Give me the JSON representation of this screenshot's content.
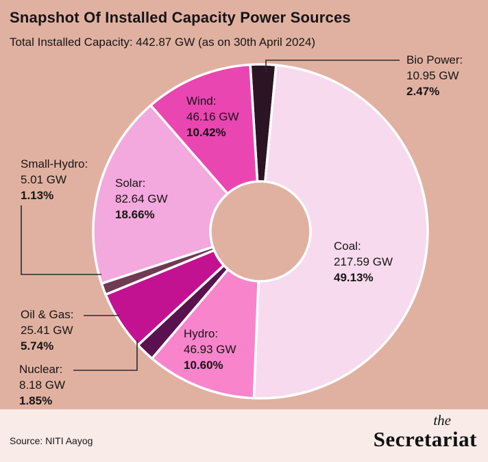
{
  "header": {
    "title": "Snapshot Of Installed Capacity Power Sources",
    "subtitle": "Total Installed Capacity: 442.87 GW (as on 30th April 2024)"
  },
  "footer": {
    "source": "Source: NITI Aayog",
    "logo_top": "the",
    "logo_main": "Secretariat"
  },
  "colors": {
    "background": "#e0b1a1",
    "footer_background": "#f9ebe8",
    "gap_stroke": "#ffffff",
    "connector": "#2a2a2a",
    "text": "#171414"
  },
  "chart_data": {
    "type": "pie",
    "donut": true,
    "title": "Snapshot Of Installed Capacity Power Sources",
    "subtitle": "Total Installed Capacity: 442.87 GW (as on 30th April 2024)",
    "total_label": "442.87 GW",
    "as_on": "30th April 2024",
    "direction": "clockwise",
    "start_angle_deg": -3.5,
    "legend_position": "around-slices",
    "series": [
      {
        "id": "bio",
        "label": "Bio Power:",
        "gw": "10.95 GW",
        "value_gw": 10.95,
        "pct": 2.47,
        "pct_label": "2.47%",
        "color": "#2b1424"
      },
      {
        "id": "coal",
        "label": "Coal:",
        "gw": "217.59 GW",
        "value_gw": 217.59,
        "pct": 49.13,
        "pct_label": "49.13%",
        "color": "#f7daee"
      },
      {
        "id": "hydro",
        "label": "Hydro:",
        "gw": "46.93 GW",
        "value_gw": 46.93,
        "pct": 10.6,
        "pct_label": "10.60%",
        "color": "#f884cc"
      },
      {
        "id": "nuclear",
        "label": "Nuclear:",
        "gw": "8.18 GW",
        "value_gw": 8.18,
        "pct": 1.85,
        "pct_label": "1.85%",
        "color": "#5a1150"
      },
      {
        "id": "oilgas",
        "label": "Oil & Gas:",
        "gw": "25.41 GW",
        "value_gw": 25.41,
        "pct": 5.74,
        "pct_label": "5.74%",
        "color": "#c31291"
      },
      {
        "id": "smallhydro",
        "label": "Small-Hydro:",
        "gw": "5.01 GW",
        "value_gw": 5.01,
        "pct": 1.13,
        "pct_label": "1.13%",
        "color": "#6e3b53"
      },
      {
        "id": "solar",
        "label": "Solar:",
        "gw": "82.64 GW",
        "value_gw": 82.64,
        "pct": 18.66,
        "pct_label": "18.66%",
        "color": "#f3a8de"
      },
      {
        "id": "wind",
        "label": "Wind:",
        "gw": "46.16 GW",
        "value_gw": 46.16,
        "pct": 10.42,
        "pct_label": "10.42%",
        "color": "#e946b2"
      }
    ]
  }
}
